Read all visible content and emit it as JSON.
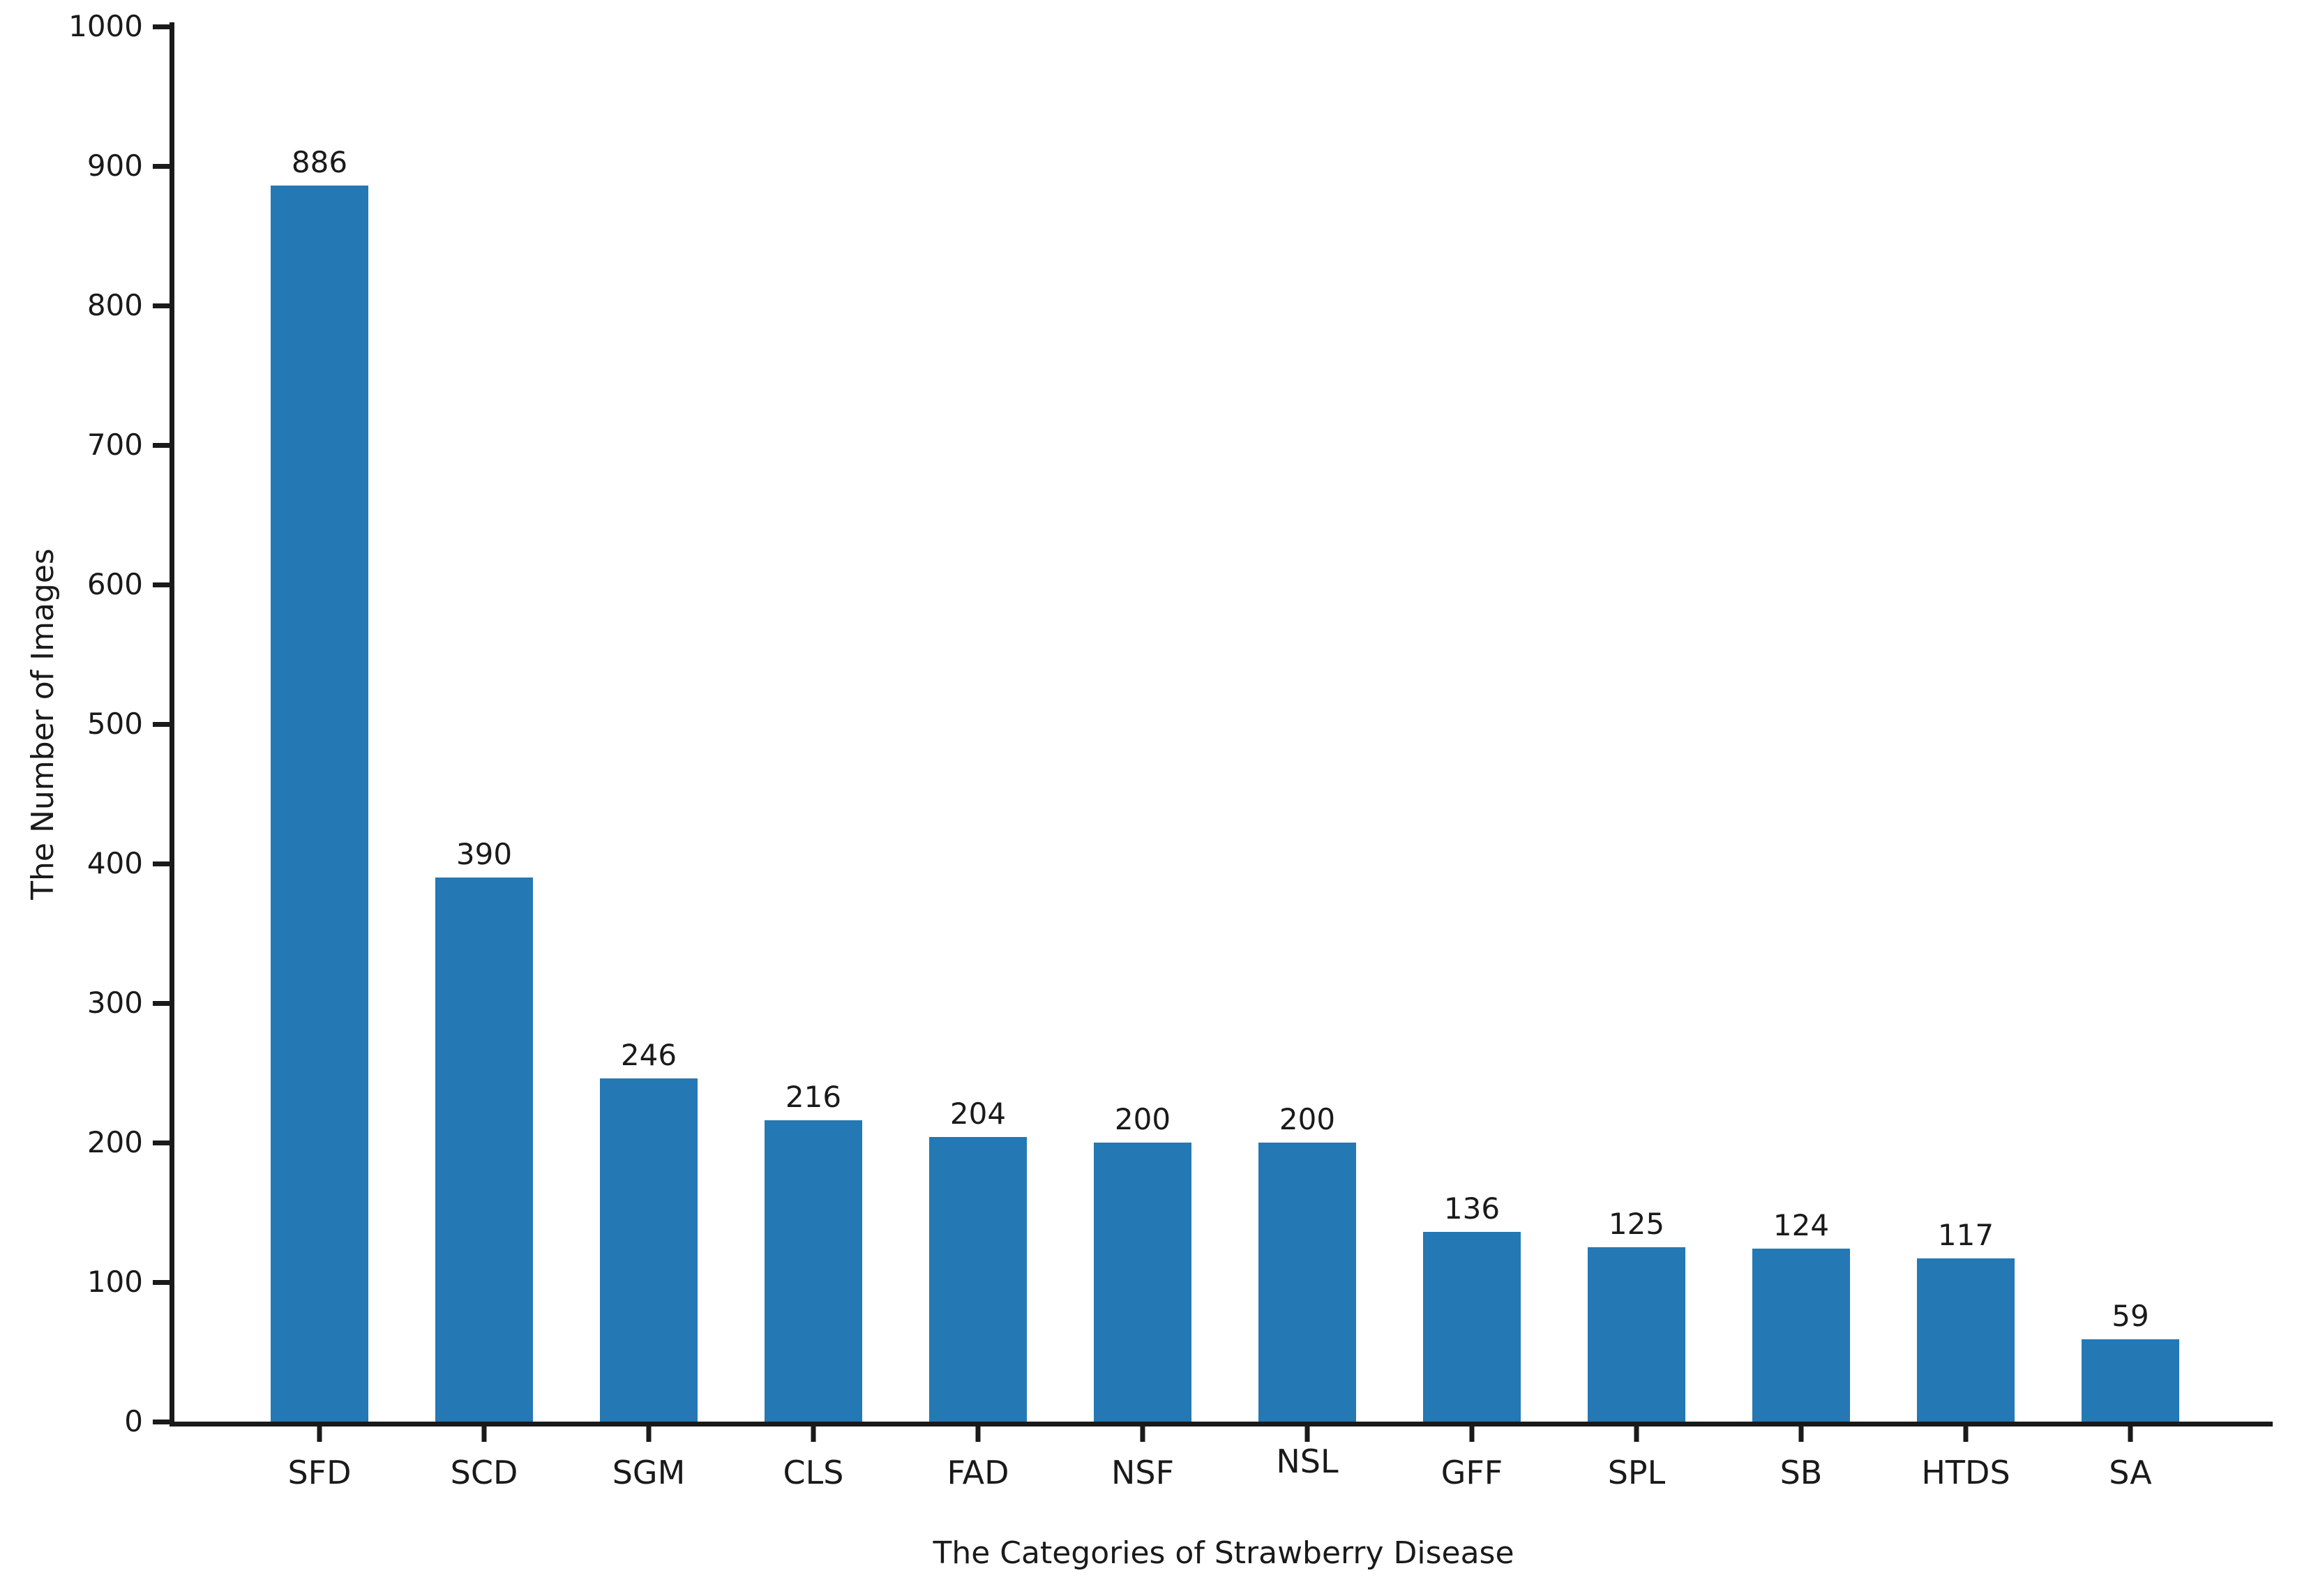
{
  "chart_data": {
    "type": "bar",
    "title": "",
    "categories": [
      "SFD",
      "SCD",
      "SGM",
      "CLS",
      "FAD",
      "NSF",
      "NSL",
      "GFF",
      "SPL",
      "SB",
      "HTDS",
      "SA"
    ],
    "values": [
      886,
      390,
      246,
      216,
      204,
      200,
      200,
      136,
      125,
      124,
      117,
      59
    ],
    "xlabel": "The Categories of Strawberry Disease",
    "ylabel": "The Number of Images",
    "ylim": [
      0,
      1000
    ],
    "yticks": [
      0,
      100,
      200,
      300,
      400,
      500,
      600,
      700,
      800,
      900,
      1000
    ],
    "bar_color": "#2478b4",
    "axis_color": "#1a1a1a",
    "grid": false,
    "legend_position": "none",
    "raised_x_tick_label": "NSL"
  }
}
